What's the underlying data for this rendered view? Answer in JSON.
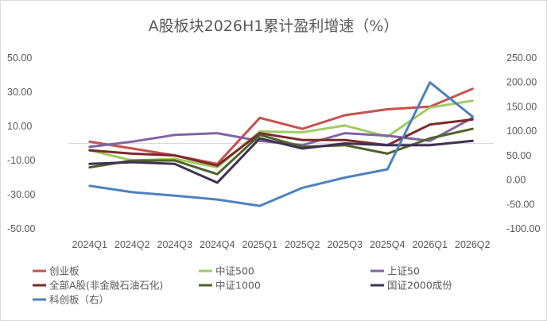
{
  "chart_data": {
    "type": "line",
    "title": "A股板块2026H1累计盈利增速（%）",
    "categories": [
      "2024Q1",
      "2024Q2",
      "2024Q3",
      "2024Q4",
      "2025Q1",
      "2025Q2",
      "2025Q3",
      "2025Q4",
      "2026Q1",
      "2026Q2"
    ],
    "y_left": {
      "range": [
        -50,
        50
      ],
      "ticks": [
        "50.00",
        "30.00",
        "10.00",
        "-10.00",
        "-30.00",
        "-50.00"
      ]
    },
    "y_right": {
      "range": [
        -100,
        250
      ],
      "ticks": [
        "250.00",
        "200.00",
        "150.00",
        "100.00",
        "50.00",
        "0.00",
        "-50.00",
        "-100.00"
      ]
    },
    "grid": false,
    "legend_position": "bottom",
    "series": [
      {
        "name": "创业板",
        "color": "#c9504d",
        "axis": "left",
        "values": [
          1,
          -3,
          -7,
          -12,
          15,
          8.5,
          16.5,
          20,
          21.5,
          32
        ]
      },
      {
        "name": "中证500",
        "color": "#9fcb63",
        "axis": "left",
        "values": [
          -4,
          -10,
          -9,
          -14,
          7,
          6.5,
          10.5,
          4,
          21,
          25
        ]
      },
      {
        "name": "上证50",
        "color": "#8064a2",
        "axis": "left",
        "values": [
          -2,
          1,
          5,
          6,
          1.5,
          -1,
          6,
          4.5,
          1.5,
          15
        ]
      },
      {
        "name": "全部A股(非金融石油石化)",
        "color": "#7c2a27",
        "axis": "left",
        "values": [
          -4,
          -6,
          -7,
          -13,
          6,
          2,
          2,
          -1,
          11,
          14
        ]
      },
      {
        "name": "中证1000",
        "color": "#4f6228",
        "axis": "left",
        "values": [
          -14,
          -10,
          -10,
          -18,
          5,
          -2,
          -1,
          -6,
          3,
          8.5
        ]
      },
      {
        "name": "国证2000成份",
        "color": "#403152",
        "axis": "left",
        "values": [
          -12,
          -11,
          -12,
          -23,
          3,
          -3,
          0,
          -1,
          -1,
          1.5
        ]
      },
      {
        "name": "科创板（右）",
        "color": "#4f81bd",
        "axis": "right",
        "values": [
          -12,
          -25,
          -32,
          -40,
          -53,
          -16,
          5,
          22,
          200,
          130
        ]
      }
    ]
  }
}
